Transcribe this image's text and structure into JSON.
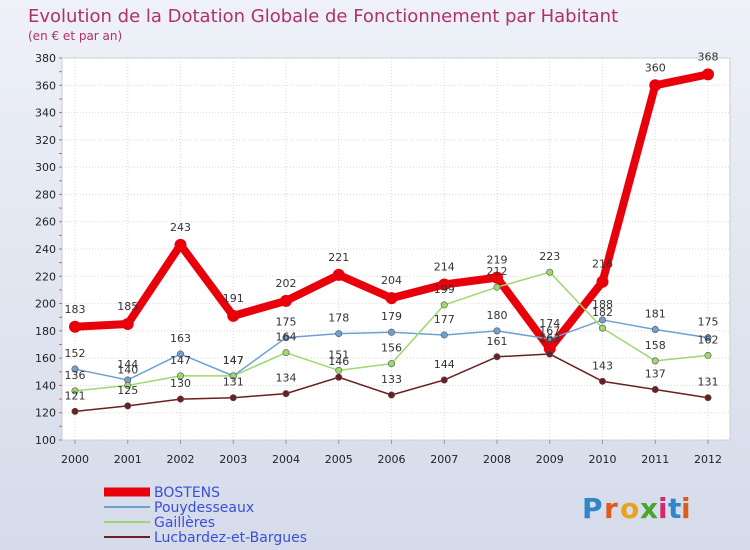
{
  "chart_data": {
    "type": "line",
    "title": "Evolution de la Dotation Globale de Fonctionnement par Habitant",
    "subtitle": "(en € et par an)",
    "xlabel": "",
    "ylabel": "",
    "ylim": [
      100,
      380
    ],
    "yticks": [
      100,
      120,
      140,
      160,
      180,
      200,
      220,
      240,
      260,
      280,
      300,
      320,
      340,
      360,
      380
    ],
    "categories": [
      "2000",
      "2001",
      "2002",
      "2003",
      "2004",
      "2005",
      "2006",
      "2007",
      "2008",
      "2009",
      "2010",
      "2011",
      "2012"
    ],
    "grid": true,
    "legend_position": "bottom-left",
    "series": [
      {
        "name": "BOSTENS",
        "color": "#e8000b",
        "values": [
          183,
          185,
          243,
          191,
          202,
          221,
          204,
          214,
          219,
          167,
          216,
          360,
          368
        ]
      },
      {
        "name": "Pouydesseaux",
        "color": "#6fa0cf",
        "values": [
          152,
          144,
          163,
          147,
          175,
          178,
          179,
          177,
          180,
          174,
          188,
          181,
          175
        ]
      },
      {
        "name": "Gaillères",
        "color": "#9ed86c",
        "values": [
          136,
          140,
          147,
          147,
          164,
          151,
          156,
          199,
          212,
          223,
          182,
          158,
          162
        ]
      },
      {
        "name": "Lucbardez-et-Bargues",
        "color": "#6b1f22",
        "values": [
          121,
          125,
          130,
          131,
          134,
          146,
          133,
          144,
          161,
          163,
          143,
          137,
          131
        ]
      }
    ]
  },
  "brand": {
    "text": "Proxiti",
    "letters": [
      "P",
      "r",
      "o",
      "x",
      "i",
      "t",
      "i"
    ]
  }
}
